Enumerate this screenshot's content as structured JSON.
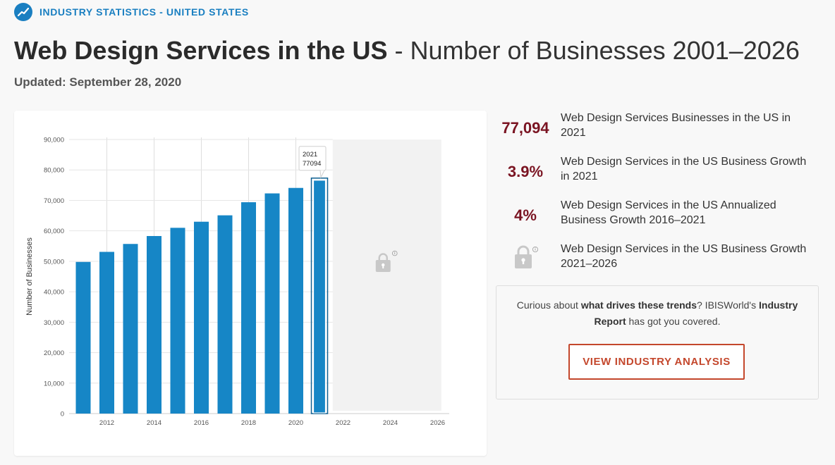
{
  "header": {
    "kicker": "INDUSTRY STATISTICS - UNITED STATES",
    "title_main": "Web Design Services in the US",
    "title_sub": " - Number of Businesses 2001–2026",
    "updated": "Updated: September 28, 2020"
  },
  "stats": [
    {
      "value": "77,094",
      "label": "Web Design Services Businesses in the US in 2021"
    },
    {
      "value": "3.9%",
      "label": "Web Design Services in the US Business Growth in 2021"
    },
    {
      "value": "4%",
      "label": "Web Design Services in the US Annualized Business Growth 2016–2021"
    },
    {
      "value": "",
      "icon": "lock-icon",
      "label": "Web Design Services in the US Business Growth 2021–2026"
    }
  ],
  "cta": {
    "text_pre": "Curious about ",
    "text_bold1": "what drives these trends",
    "text_mid": "? IBISWorld's ",
    "text_bold2": "Industry Report",
    "text_post": " has got you covered.",
    "button": "VIEW INDUSTRY ANALYSIS"
  },
  "colors": {
    "accent": "#1a7fc1",
    "bar": "#1686c6",
    "stat_value": "#7a1422",
    "cta": "#c4472c"
  },
  "chart_data": {
    "type": "bar",
    "ylabel": "Number of Businesses",
    "xlabel": "",
    "ylim": [
      0,
      90000
    ],
    "y_ticks": [
      "0",
      "10,000",
      "20,000",
      "30,000",
      "40,000",
      "50,000",
      "60,000",
      "70,000",
      "80,000",
      "90,000"
    ],
    "x_ticks": [
      "2012",
      "2014",
      "2016",
      "2018",
      "2020",
      "2022",
      "2024",
      "2026"
    ],
    "x_range": [
      2011,
      2026
    ],
    "series": [
      {
        "x": [
          2011,
          2012,
          2013,
          2014,
          2015,
          2016,
          2017,
          2018,
          2019,
          2020,
          2021
        ],
        "values": [
          49800,
          53100,
          55700,
          58300,
          61000,
          63000,
          65100,
          69400,
          72300,
          74100,
          77094
        ]
      }
    ],
    "highlighted": {
      "x": 2021,
      "tooltip_year": "2021",
      "tooltip_value": "77094"
    },
    "locked_range": [
      2022,
      2026
    ],
    "grid": true
  }
}
